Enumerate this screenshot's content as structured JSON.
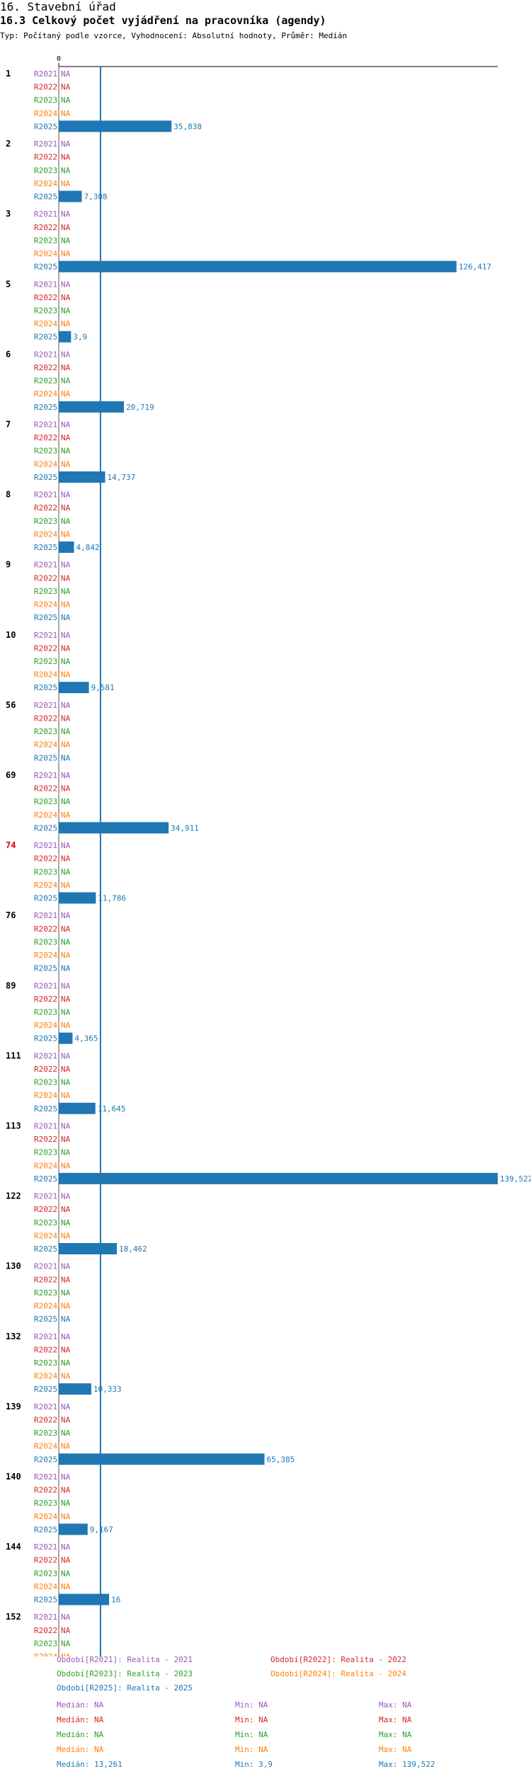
{
  "header": {
    "title": "16. Stavební úřad",
    "subtitle": "16.3 Celkový počet vyjádření na pracovníka (agendy)",
    "meta": "Typ: Počítaný podle vzorce, Vyhodnocení: Absolutní hodnoty, Průměr: Medián"
  },
  "chart_data": {
    "type": "bar",
    "orientation": "horizontal",
    "axis_zero_label": "0",
    "xlim": [
      0,
      139.522
    ],
    "reference_line": 13.261,
    "na_label": "NA",
    "series": [
      {
        "name": "R2021",
        "color": "#9b59b6"
      },
      {
        "name": "R2022",
        "color": "#d62728"
      },
      {
        "name": "R2023",
        "color": "#2ca02c"
      },
      {
        "name": "R2024",
        "color": "#ff7f0e"
      },
      {
        "name": "R2025",
        "color": "#1f77b4"
      }
    ],
    "groups": [
      {
        "label": "1",
        "values": [
          null,
          null,
          null,
          null,
          35.838
        ],
        "value_labels": [
          "",
          "",
          "",
          "",
          "35,838"
        ]
      },
      {
        "label": "2",
        "values": [
          null,
          null,
          null,
          null,
          7.308
        ],
        "value_labels": [
          "",
          "",
          "",
          "",
          "7,308"
        ]
      },
      {
        "label": "3",
        "values": [
          null,
          null,
          null,
          null,
          126.417
        ],
        "value_labels": [
          "",
          "",
          "",
          "",
          "126,417"
        ]
      },
      {
        "label": "5",
        "values": [
          null,
          null,
          null,
          null,
          3.9
        ],
        "value_labels": [
          "",
          "",
          "",
          "",
          "3,9"
        ]
      },
      {
        "label": "6",
        "values": [
          null,
          null,
          null,
          null,
          20.719
        ],
        "value_labels": [
          "",
          "",
          "",
          "",
          "20,719"
        ]
      },
      {
        "label": "7",
        "values": [
          null,
          null,
          null,
          null,
          14.737
        ],
        "value_labels": [
          "",
          "",
          "",
          "",
          "14,737"
        ]
      },
      {
        "label": "8",
        "values": [
          null,
          null,
          null,
          null,
          4.842
        ],
        "value_labels": [
          "",
          "",
          "",
          "",
          "4,842"
        ]
      },
      {
        "label": "9",
        "values": [
          null,
          null,
          null,
          null,
          null
        ],
        "value_labels": [
          "",
          "",
          "",
          "",
          ""
        ]
      },
      {
        "label": "10",
        "values": [
          null,
          null,
          null,
          null,
          9.581
        ],
        "value_labels": [
          "",
          "",
          "",
          "",
          "9,581"
        ]
      },
      {
        "label": "56",
        "values": [
          null,
          null,
          null,
          null,
          null
        ],
        "value_labels": [
          "",
          "",
          "",
          "",
          ""
        ]
      },
      {
        "label": "69",
        "values": [
          null,
          null,
          null,
          null,
          34.911
        ],
        "value_labels": [
          "",
          "",
          "",
          "",
          "34,911"
        ]
      },
      {
        "label": "74",
        "highlight": true,
        "values": [
          null,
          null,
          null,
          null,
          11.786
        ],
        "value_labels": [
          "",
          "",
          "",
          "",
          "11,786"
        ]
      },
      {
        "label": "76",
        "values": [
          null,
          null,
          null,
          null,
          null
        ],
        "value_labels": [
          "",
          "",
          "",
          "",
          ""
        ]
      },
      {
        "label": "89",
        "values": [
          null,
          null,
          null,
          null,
          4.365
        ],
        "value_labels": [
          "",
          "",
          "",
          "",
          "4,365"
        ]
      },
      {
        "label": "111",
        "values": [
          null,
          null,
          null,
          null,
          11.645
        ],
        "value_labels": [
          "",
          "",
          "",
          "",
          "11,645"
        ]
      },
      {
        "label": "113",
        "values": [
          null,
          null,
          null,
          null,
          139.522
        ],
        "value_labels": [
          "",
          "",
          "",
          "",
          "139,522"
        ]
      },
      {
        "label": "122",
        "values": [
          null,
          null,
          null,
          null,
          18.462
        ],
        "value_labels": [
          "",
          "",
          "",
          "",
          "18,462"
        ]
      },
      {
        "label": "130",
        "values": [
          null,
          null,
          null,
          null,
          null
        ],
        "value_labels": [
          "",
          "",
          "",
          "",
          ""
        ]
      },
      {
        "label": "132",
        "values": [
          null,
          null,
          null,
          null,
          10.333
        ],
        "value_labels": [
          "",
          "",
          "",
          "",
          "10,333"
        ]
      },
      {
        "label": "139",
        "values": [
          null,
          null,
          null,
          null,
          65.385
        ],
        "value_labels": [
          "",
          "",
          "",
          "",
          "65,385"
        ]
      },
      {
        "label": "140",
        "values": [
          null,
          null,
          null,
          null,
          9.167
        ],
        "value_labels": [
          "",
          "",
          "",
          "",
          "9,167"
        ]
      },
      {
        "label": "144",
        "values": [
          null,
          null,
          null,
          null,
          16
        ],
        "value_labels": [
          "",
          "",
          "",
          "",
          "16"
        ]
      },
      {
        "label": "152",
        "values": [
          null,
          null,
          null,
          null,
          null
        ],
        "value_labels": [
          "",
          "",
          "",
          "",
          ""
        ]
      }
    ]
  },
  "legend": {
    "periods": [
      {
        "text": "Období[R2021]: Realita - 2021",
        "color": "#9b59b6"
      },
      {
        "text": "Období[R2022]: Realita - 2022",
        "color": "#d62728"
      },
      {
        "text": "Období[R2023]: Realita - 2023",
        "color": "#2ca02c"
      },
      {
        "text": "Období[R2024]: Realita - 2024",
        "color": "#ff7f0e"
      },
      {
        "text": "Období[R2025]: Realita - 2025",
        "color": "#1f77b4"
      }
    ],
    "stats": [
      {
        "median": "Medián: NA",
        "min": "Min: NA",
        "max": "Max: NA",
        "color": "#9b59b6"
      },
      {
        "median": "Medián: NA",
        "min": "Min: NA",
        "max": "Max: NA",
        "color": "#d62728"
      },
      {
        "median": "Medián: NA",
        "min": "Min: NA",
        "max": "Max: NA",
        "color": "#2ca02c"
      },
      {
        "median": "Medián: NA",
        "min": "Min: NA",
        "max": "Max: NA",
        "color": "#ff7f0e"
      },
      {
        "median": "Medián: 13,261",
        "min": "Min: 3,9",
        "max": "Max: 139,522",
        "color": "#1f77b4"
      }
    ]
  }
}
